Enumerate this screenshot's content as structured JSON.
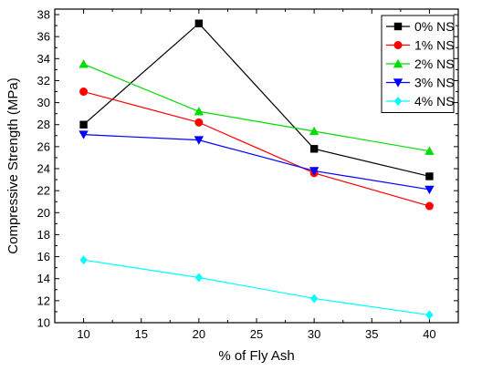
{
  "chart_data": {
    "type": "line",
    "xlabel": "% of Fly Ash",
    "ylabel": "Compressive Strength (MPa)",
    "x": [
      10,
      20,
      30,
      40
    ],
    "xlim": [
      7.5,
      42.5
    ],
    "ylim": [
      10,
      38.5
    ],
    "xticks": [
      10,
      15,
      20,
      25,
      30,
      35,
      40
    ],
    "yticks": [
      10,
      12,
      14,
      16,
      18,
      20,
      22,
      24,
      26,
      28,
      30,
      32,
      34,
      36,
      38
    ],
    "grid": false,
    "legend_position": "top-right",
    "series": [
      {
        "name": "0% NS",
        "color": "#000000",
        "marker": "square",
        "values": [
          28.0,
          37.2,
          25.8,
          23.3
        ]
      },
      {
        "name": "1% NS",
        "color": "#ff0000",
        "marker": "circle",
        "values": [
          31.0,
          28.2,
          23.6,
          20.6
        ]
      },
      {
        "name": "2% NS",
        "color": "#00dd00",
        "marker": "triangle-up",
        "values": [
          33.5,
          29.2,
          27.4,
          25.6
        ]
      },
      {
        "name": "3% NS",
        "color": "#0000ff",
        "marker": "triangle-down",
        "values": [
          27.1,
          26.6,
          23.8,
          22.1
        ]
      },
      {
        "name": "4% NS",
        "color": "#00ffff",
        "marker": "diamond",
        "values": [
          15.7,
          14.1,
          12.2,
          10.7
        ]
      }
    ]
  }
}
